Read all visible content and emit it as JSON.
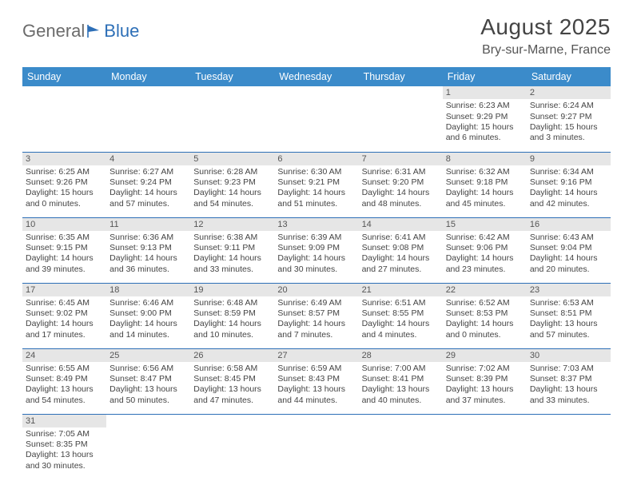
{
  "logo": {
    "word1": "General",
    "word2": "Blue"
  },
  "header": {
    "monthTitle": "August 2025",
    "location": "Bry-sur-Marne, France"
  },
  "style": {
    "headerBg": "#3b8bca",
    "ruleColor": "#2d6fb7",
    "dayBarBg": "#e6e6e6",
    "textColor": "#444444"
  },
  "dayNames": [
    "Sunday",
    "Monday",
    "Tuesday",
    "Wednesday",
    "Thursday",
    "Friday",
    "Saturday"
  ],
  "weeks": [
    [
      null,
      null,
      null,
      null,
      null,
      {
        "n": "1",
        "sr": "6:23 AM",
        "ss": "9:29 PM",
        "dl": "15 hours and 6 minutes."
      },
      {
        "n": "2",
        "sr": "6:24 AM",
        "ss": "9:27 PM",
        "dl": "15 hours and 3 minutes."
      }
    ],
    [
      {
        "n": "3",
        "sr": "6:25 AM",
        "ss": "9:26 PM",
        "dl": "15 hours and 0 minutes."
      },
      {
        "n": "4",
        "sr": "6:27 AM",
        "ss": "9:24 PM",
        "dl": "14 hours and 57 minutes."
      },
      {
        "n": "5",
        "sr": "6:28 AM",
        "ss": "9:23 PM",
        "dl": "14 hours and 54 minutes."
      },
      {
        "n": "6",
        "sr": "6:30 AM",
        "ss": "9:21 PM",
        "dl": "14 hours and 51 minutes."
      },
      {
        "n": "7",
        "sr": "6:31 AM",
        "ss": "9:20 PM",
        "dl": "14 hours and 48 minutes."
      },
      {
        "n": "8",
        "sr": "6:32 AM",
        "ss": "9:18 PM",
        "dl": "14 hours and 45 minutes."
      },
      {
        "n": "9",
        "sr": "6:34 AM",
        "ss": "9:16 PM",
        "dl": "14 hours and 42 minutes."
      }
    ],
    [
      {
        "n": "10",
        "sr": "6:35 AM",
        "ss": "9:15 PM",
        "dl": "14 hours and 39 minutes."
      },
      {
        "n": "11",
        "sr": "6:36 AM",
        "ss": "9:13 PM",
        "dl": "14 hours and 36 minutes."
      },
      {
        "n": "12",
        "sr": "6:38 AM",
        "ss": "9:11 PM",
        "dl": "14 hours and 33 minutes."
      },
      {
        "n": "13",
        "sr": "6:39 AM",
        "ss": "9:09 PM",
        "dl": "14 hours and 30 minutes."
      },
      {
        "n": "14",
        "sr": "6:41 AM",
        "ss": "9:08 PM",
        "dl": "14 hours and 27 minutes."
      },
      {
        "n": "15",
        "sr": "6:42 AM",
        "ss": "9:06 PM",
        "dl": "14 hours and 23 minutes."
      },
      {
        "n": "16",
        "sr": "6:43 AM",
        "ss": "9:04 PM",
        "dl": "14 hours and 20 minutes."
      }
    ],
    [
      {
        "n": "17",
        "sr": "6:45 AM",
        "ss": "9:02 PM",
        "dl": "14 hours and 17 minutes."
      },
      {
        "n": "18",
        "sr": "6:46 AM",
        "ss": "9:00 PM",
        "dl": "14 hours and 14 minutes."
      },
      {
        "n": "19",
        "sr": "6:48 AM",
        "ss": "8:59 PM",
        "dl": "14 hours and 10 minutes."
      },
      {
        "n": "20",
        "sr": "6:49 AM",
        "ss": "8:57 PM",
        "dl": "14 hours and 7 minutes."
      },
      {
        "n": "21",
        "sr": "6:51 AM",
        "ss": "8:55 PM",
        "dl": "14 hours and 4 minutes."
      },
      {
        "n": "22",
        "sr": "6:52 AM",
        "ss": "8:53 PM",
        "dl": "14 hours and 0 minutes."
      },
      {
        "n": "23",
        "sr": "6:53 AM",
        "ss": "8:51 PM",
        "dl": "13 hours and 57 minutes."
      }
    ],
    [
      {
        "n": "24",
        "sr": "6:55 AM",
        "ss": "8:49 PM",
        "dl": "13 hours and 54 minutes."
      },
      {
        "n": "25",
        "sr": "6:56 AM",
        "ss": "8:47 PM",
        "dl": "13 hours and 50 minutes."
      },
      {
        "n": "26",
        "sr": "6:58 AM",
        "ss": "8:45 PM",
        "dl": "13 hours and 47 minutes."
      },
      {
        "n": "27",
        "sr": "6:59 AM",
        "ss": "8:43 PM",
        "dl": "13 hours and 44 minutes."
      },
      {
        "n": "28",
        "sr": "7:00 AM",
        "ss": "8:41 PM",
        "dl": "13 hours and 40 minutes."
      },
      {
        "n": "29",
        "sr": "7:02 AM",
        "ss": "8:39 PM",
        "dl": "13 hours and 37 minutes."
      },
      {
        "n": "30",
        "sr": "7:03 AM",
        "ss": "8:37 PM",
        "dl": "13 hours and 33 minutes."
      }
    ],
    [
      {
        "n": "31",
        "sr": "7:05 AM",
        "ss": "8:35 PM",
        "dl": "13 hours and 30 minutes."
      },
      null,
      null,
      null,
      null,
      null,
      null
    ]
  ],
  "labels": {
    "sunrise": "Sunrise:",
    "sunset": "Sunset:",
    "daylight": "Daylight:"
  }
}
